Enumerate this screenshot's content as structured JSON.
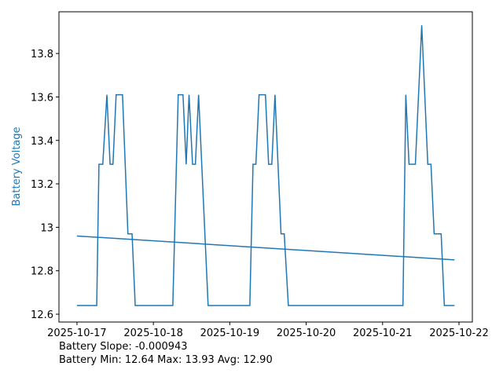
{
  "chart_data": {
    "type": "line",
    "ylabel": "Battery Voltage",
    "ylabel_color": "#1f77b4",
    "annotations": [
      "Battery Slope: -0.000943",
      "Battery Min: 12.64 Max: 13.93 Avg: 12.90"
    ],
    "xlim": [
      "2025-10-16 18:20",
      "2025-10-22 04:12"
    ],
    "xticks": [
      "2025-10-17",
      "2025-10-18",
      "2025-10-19",
      "2025-10-20",
      "2025-10-21",
      "2025-10-22"
    ],
    "ylim": [
      12.564,
      13.992
    ],
    "yticks": [
      12.6,
      12.8,
      13.0,
      13.2,
      13.4,
      13.6,
      13.8
    ],
    "series": [
      {
        "color": "#1f77b4",
        "x": [
          "2025-10-17 00:00",
          "2025-10-17 06:12",
          "2025-10-17 06:54",
          "2025-10-17 08:06",
          "2025-10-17 09:24",
          "2025-10-17 10:24",
          "2025-10-17 11:18",
          "2025-10-17 12:18",
          "2025-10-17 14:18",
          "2025-10-17 16:00",
          "2025-10-17 17:18",
          "2025-10-17 18:18",
          "2025-10-18 06:06",
          "2025-10-18 07:48",
          "2025-10-18 09:18",
          "2025-10-18 10:18",
          "2025-10-18 11:12",
          "2025-10-18 12:18",
          "2025-10-18 13:12",
          "2025-10-18 14:12",
          "2025-10-18 17:12",
          "2025-10-19 06:18",
          "2025-10-19 07:18",
          "2025-10-19 08:12",
          "2025-10-19 09:12",
          "2025-10-19 11:12",
          "2025-10-19 12:12",
          "2025-10-19 13:12",
          "2025-10-19 14:12",
          "2025-10-19 16:06",
          "2025-10-19 17:06",
          "2025-10-19 18:24",
          "2025-10-21 06:24",
          "2025-10-21 07:18",
          "2025-10-21 08:18",
          "2025-10-21 10:18",
          "2025-10-21 12:18",
          "2025-10-21 14:12",
          "2025-10-21 15:12",
          "2025-10-21 16:12",
          "2025-10-21 18:24",
          "2025-10-21 19:24",
          "2025-10-21 22:36"
        ],
        "values": [
          12.64,
          12.64,
          13.29,
          13.29,
          13.61,
          13.29,
          13.29,
          13.61,
          13.61,
          12.97,
          12.97,
          12.64,
          12.64,
          13.61,
          13.61,
          13.29,
          13.61,
          13.29,
          13.29,
          13.61,
          12.64,
          12.64,
          13.29,
          13.29,
          13.61,
          13.61,
          13.29,
          13.29,
          13.61,
          12.97,
          12.97,
          12.64,
          12.64,
          13.61,
          13.29,
          13.29,
          13.93,
          13.29,
          13.29,
          12.97,
          12.97,
          12.64,
          12.64
        ]
      },
      {
        "color": "#1f77b4",
        "x": [
          "2025-10-17 00:00",
          "2025-10-21 22:36"
        ],
        "values": [
          12.96,
          12.85
        ]
      }
    ]
  }
}
